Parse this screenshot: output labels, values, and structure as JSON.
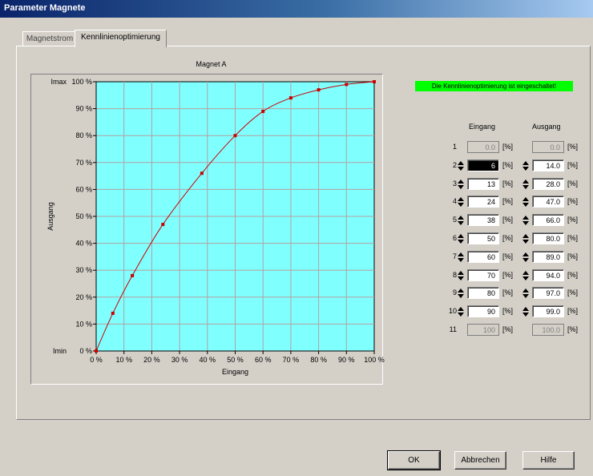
{
  "window": {
    "title": "Parameter Magnete"
  },
  "tabs": [
    {
      "label": "Magnetstrom",
      "active": false
    },
    {
      "label": "Kennlinienoptimierung",
      "active": true
    }
  ],
  "status_text": "Die Kennlinienoptimierung ist eingeschaltet!",
  "status_color": "#00ff00",
  "table": {
    "header_in": "Eingang",
    "header_out": "Ausgang",
    "unit": "[%]",
    "rows": [
      {
        "num": "1",
        "in": "0.0",
        "out": "0.0",
        "editable": false
      },
      {
        "num": "2",
        "in": "6",
        "out": "14.0",
        "editable": true,
        "selected": true
      },
      {
        "num": "3",
        "in": "13",
        "out": "28.0",
        "editable": true
      },
      {
        "num": "4",
        "in": "24",
        "out": "47.0",
        "editable": true
      },
      {
        "num": "5",
        "in": "38",
        "out": "66.0",
        "editable": true
      },
      {
        "num": "6",
        "in": "50",
        "out": "80.0",
        "editable": true
      },
      {
        "num": "7",
        "in": "60",
        "out": "89.0",
        "editable": true
      },
      {
        "num": "8",
        "in": "70",
        "out": "94.0",
        "editable": true
      },
      {
        "num": "9",
        "in": "80",
        "out": "97.0",
        "editable": true
      },
      {
        "num": "10",
        "in": "90",
        "out": "99.0",
        "editable": true
      },
      {
        "num": "11",
        "in": "100",
        "out": "100.0",
        "editable": false
      }
    ]
  },
  "buttons": {
    "ok": "OK",
    "cancel": "Abbrechen",
    "help": "Hilfe"
  },
  "chart_data": {
    "type": "line",
    "title": "Magnet A",
    "xlabel": "Eingang",
    "ylabel": "Ausgang",
    "x": [
      0,
      6,
      13,
      24,
      38,
      50,
      60,
      70,
      80,
      90,
      100
    ],
    "y": [
      0,
      14,
      28,
      47,
      66,
      80,
      89,
      94,
      97,
      99,
      100
    ],
    "xlim": [
      0,
      100
    ],
    "ylim": [
      0,
      100
    ],
    "xticks": [
      "0 %",
      "10 %",
      "20 %",
      "30 %",
      "40 %",
      "50 %",
      "60 %",
      "70 %",
      "80 %",
      "90 %",
      "100 %"
    ],
    "yticks": [
      "0 %",
      "10 %",
      "20 %",
      "30 %",
      "40 %",
      "50 %",
      "60 %",
      "70 %",
      "80 %",
      "90 %",
      "100 %"
    ],
    "y_min_label": "Imin",
    "y_max_label": "Imax",
    "grid": true,
    "background_color": "#80ffff",
    "line_color": "#cc0000"
  }
}
